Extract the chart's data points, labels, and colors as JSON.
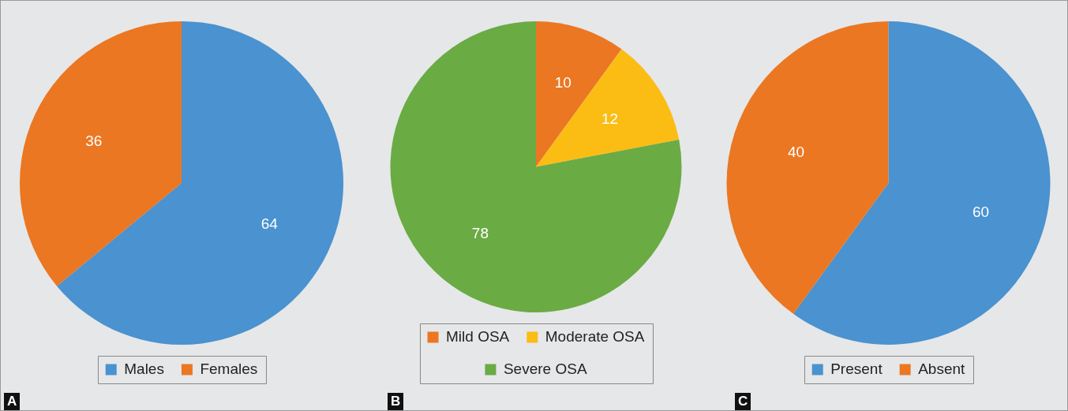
{
  "chart_data": [
    {
      "type": "pie",
      "categories": [
        "Males",
        "Females"
      ],
      "values": [
        64,
        36
      ],
      "colors": [
        "#4a92d0",
        "#eb7722"
      ],
      "data_labels": true,
      "legend": "bottom",
      "annotations": [
        "A"
      ]
    },
    {
      "type": "pie",
      "categories": [
        "Mild OSA",
        "Moderate OSA",
        "Severe OSA"
      ],
      "values": [
        10,
        12,
        78
      ],
      "colors": [
        "#eb7722",
        "#fbbd14",
        "#6aab44"
      ],
      "data_labels": true,
      "legend": "bottom",
      "annotations": [
        "B"
      ]
    },
    {
      "type": "pie",
      "categories": [
        "Present",
        "Absent"
      ],
      "values": [
        60,
        40
      ],
      "colors": [
        "#4a92d0",
        "#eb7722"
      ],
      "data_labels": true,
      "legend": "bottom",
      "annotations": [
        "C"
      ]
    }
  ]
}
